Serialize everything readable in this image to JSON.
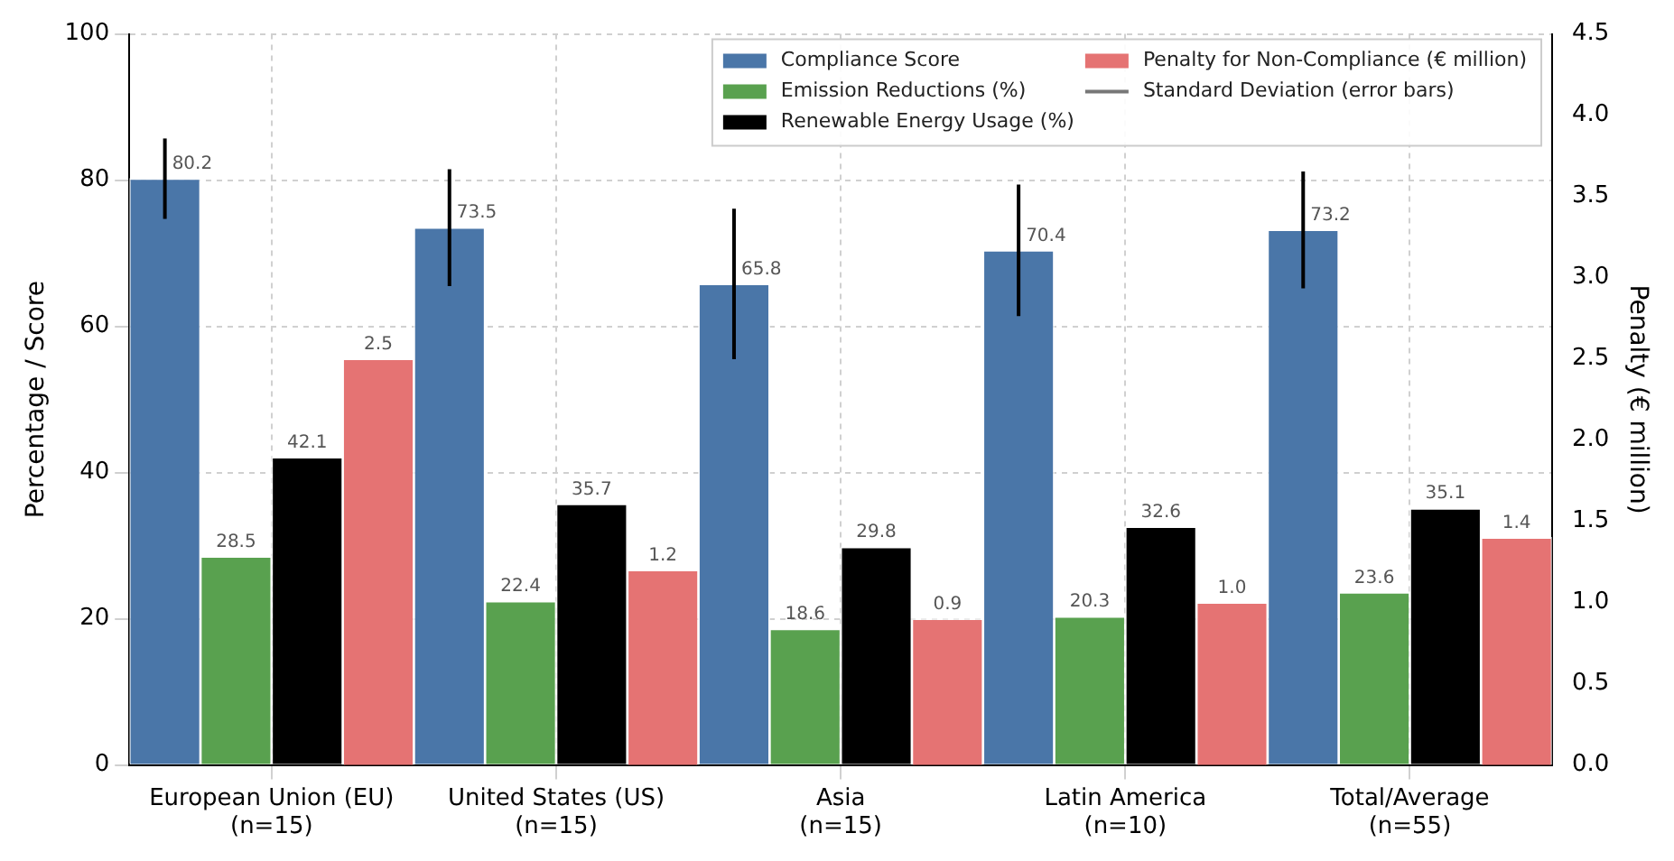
{
  "chart_data": {
    "type": "bar",
    "ylabel": "Percentage / Score",
    "y2label": "Penalty (€ million)",
    "categories": [
      "European Union (EU)\n(n=15)",
      "United States (US)\n(n=15)",
      "Asia\n(n=15)",
      "Latin America\n(n=10)",
      "Total/Average\n(n=55)"
    ],
    "series": [
      {
        "name": "Compliance Score",
        "color": "#4a76a8",
        "values": [
          80.2,
          73.5,
          65.8,
          70.4,
          73.2
        ],
        "errors": [
          5.5,
          8,
          10.3,
          9,
          8
        ],
        "value_labels": [
          "80.2",
          "73.5",
          "65.8",
          "70.4",
          "73.2"
        ]
      },
      {
        "name": "Emission Reductions (%)",
        "color": "#59a14f",
        "values": [
          28.5,
          22.4,
          18.6,
          20.3,
          23.6
        ],
        "value_labels": [
          "28.5",
          "22.4",
          "18.6",
          "20.3",
          "23.6"
        ]
      },
      {
        "name": "Renewable Energy Usage (%)",
        "color": "#000000",
        "values": [
          42.1,
          35.7,
          29.8,
          32.6,
          35.1
        ],
        "value_labels": [
          "42.1",
          "35.7",
          "29.8",
          "32.6",
          "35.1"
        ]
      },
      {
        "name": "Penalty for Non-Compliance (€ million)",
        "color": "#e57373",
        "axis": "y2",
        "values": [
          2.5,
          1.2,
          0.9,
          1.0,
          1.4
        ],
        "value_labels": [
          "2.5",
          "1.2",
          "0.9",
          "1.0",
          "1.4"
        ]
      }
    ],
    "annotations": [
      "Standard Deviation (error bars)"
    ],
    "ylim": [
      0,
      100
    ],
    "yticks": [
      0,
      20,
      40,
      60,
      80,
      100
    ],
    "y2lim": [
      0,
      4.5
    ],
    "y2ticks": [
      {
        "value": 0,
        "label": "0.0"
      },
      {
        "value": 0.5,
        "label": "0.5"
      },
      {
        "value": 1,
        "label": "1.0"
      },
      {
        "value": 1.5,
        "label": "1.5"
      },
      {
        "value": 2,
        "label": "2.0"
      },
      {
        "value": 2.5,
        "label": "2.5"
      },
      {
        "value": 3,
        "label": "3.0"
      },
      {
        "value": 3.5,
        "label": "3.5"
      },
      {
        "value": 4,
        "label": "4.0"
      },
      {
        "value": 4.5,
        "label": "4.5"
      }
    ],
    "grid": true,
    "legend": "top right"
  }
}
